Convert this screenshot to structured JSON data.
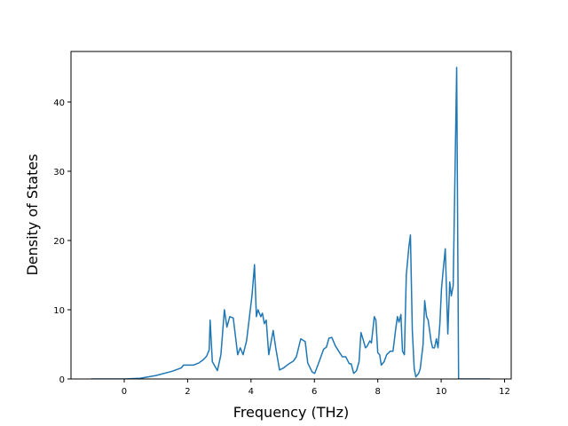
{
  "chart_data": {
    "type": "line",
    "xlabel": "Frequency (THz)",
    "ylabel": "Density of States",
    "xlim": [
      -1.68,
      12.21
    ],
    "ylim": [
      0,
      47.3
    ],
    "xticks": [
      0,
      2,
      4,
      6,
      8,
      10,
      12
    ],
    "yticks": [
      0,
      10,
      20,
      30,
      40
    ],
    "grid": false,
    "series": [
      {
        "name": null,
        "color": "#1f77b4",
        "x": [
          -1.05,
          0,
          0.5,
          1,
          1.5,
          1.8,
          1.87,
          2.18,
          2.35,
          2.5,
          2.6,
          2.68,
          2.71,
          2.78,
          2.94,
          3.05,
          3.16,
          3.24,
          3.33,
          3.44,
          3.58,
          3.66,
          3.75,
          3.86,
          4.03,
          4.11,
          4.17,
          4.22,
          4.31,
          4.36,
          4.42,
          4.48,
          4.56,
          4.7,
          4.78,
          4.9,
          5.03,
          5.2,
          5.34,
          5.43,
          5.57,
          5.71,
          5.79,
          5.93,
          6.01,
          6.15,
          6.29,
          6.38,
          6.46,
          6.55,
          6.66,
          6.77,
          6.88,
          6.99,
          7.1,
          7.16,
          7.24,
          7.33,
          7.41,
          7.47,
          7.55,
          7.61,
          7.66,
          7.75,
          7.8,
          7.89,
          7.94,
          8.0,
          8.06,
          8.11,
          8.2,
          8.28,
          8.39,
          8.48,
          8.56,
          8.62,
          8.67,
          8.73,
          8.78,
          8.84,
          8.9,
          8.98,
          9.03,
          9.09,
          9.15,
          9.2,
          9.29,
          9.34,
          9.43,
          9.48,
          9.54,
          9.59,
          9.68,
          9.73,
          9.79,
          9.85,
          9.9,
          9.96,
          10.01,
          10.07,
          10.13,
          10.21,
          10.27,
          10.32,
          10.38,
          10.49,
          10.55,
          11.55
        ],
        "values": [
          0,
          0,
          0.1,
          0.5,
          1.1,
          1.6,
          2.0,
          2.0,
          2.3,
          2.8,
          3.3,
          4.2,
          8.5,
          2.5,
          1.2,
          3.5,
          10,
          7.5,
          9,
          8.8,
          3.5,
          4.5,
          3.5,
          5.5,
          12,
          16.5,
          9,
          10,
          9,
          9.5,
          8,
          8.5,
          3.5,
          7,
          4.5,
          1.3,
          1.6,
          2.2,
          2.6,
          3.2,
          5.8,
          5.4,
          2.3,
          1.0,
          0.8,
          2.5,
          4.3,
          4.6,
          5.9,
          6,
          4.8,
          4,
          3.2,
          3.2,
          2.2,
          2.2,
          0.8,
          1.2,
          2.5,
          6.7,
          5.5,
          4.5,
          4.7,
          5.5,
          5.2,
          9,
          8.5,
          3.8,
          3.5,
          2,
          2.5,
          3.5,
          4,
          4,
          7,
          9,
          8.2,
          9.3,
          4,
          3.5,
          15,
          19,
          20.8,
          7,
          1.5,
          0.3,
          0.8,
          1.5,
          5,
          11.3,
          9,
          8.5,
          5.5,
          4.5,
          4.5,
          5.8,
          4.5,
          8,
          13,
          16,
          18.8,
          6.5,
          14,
          12,
          13.5,
          45,
          0,
          0
        ]
      }
    ]
  }
}
